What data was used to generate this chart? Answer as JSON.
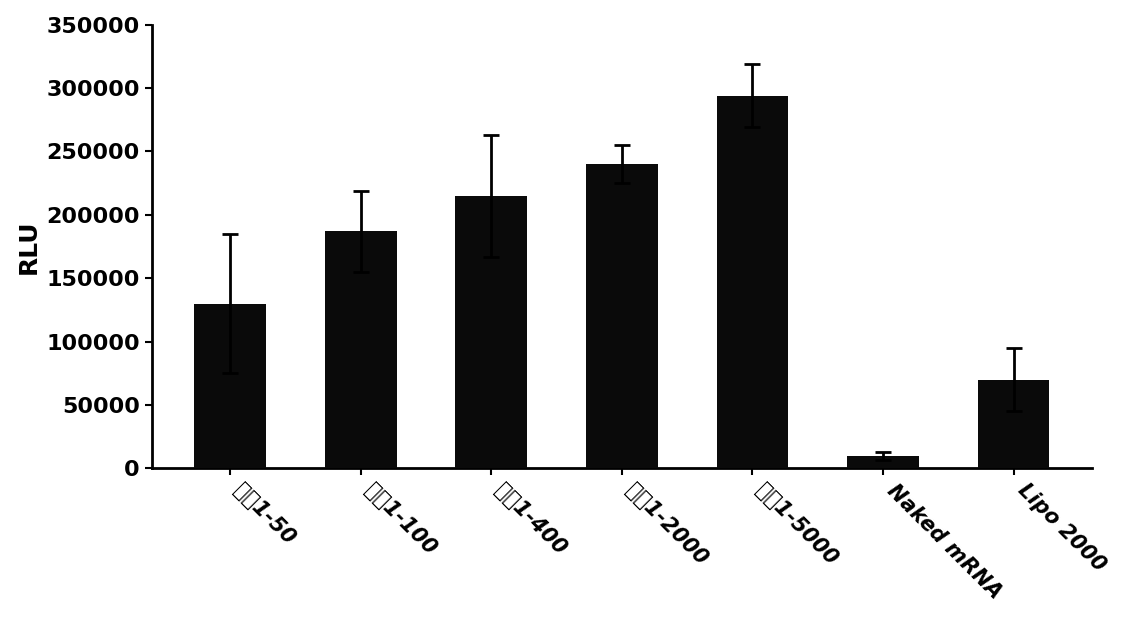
{
  "categories": [
    "处方1-50",
    "处方1-100",
    "处方1-400",
    "处方1-2000",
    "处方1-5000",
    "Naked mRNA",
    "Lipo 2000"
  ],
  "values": [
    130000,
    187000,
    215000,
    240000,
    294000,
    10000,
    70000
  ],
  "errors": [
    55000,
    32000,
    48000,
    15000,
    25000,
    3000,
    25000
  ],
  "bar_color": "#0a0a0a",
  "ylabel": "RLU",
  "ylim": [
    0,
    350000
  ],
  "yticks": [
    0,
    50000,
    100000,
    150000,
    200000,
    250000,
    300000,
    350000
  ],
  "background_color": "#ffffff",
  "bar_width": 0.55,
  "xlabel_rotation": -45,
  "tick_fontsize": 16,
  "ylabel_fontsize": 18,
  "xlabel_fontsize": 15
}
